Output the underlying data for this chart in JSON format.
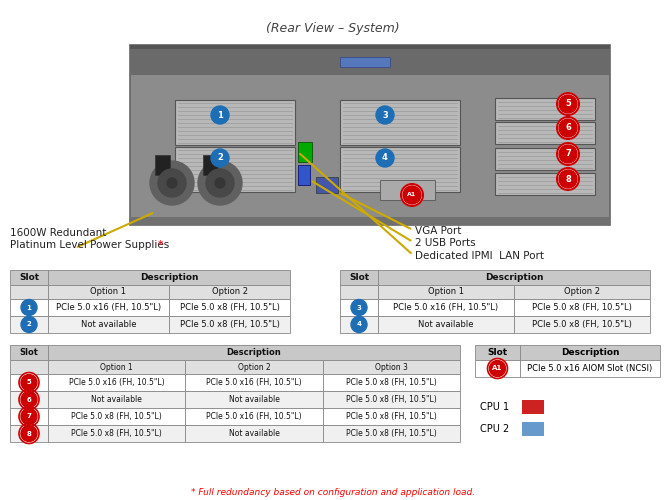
{
  "title": "(Rear View – System)",
  "bg_color": "#ffffff",
  "annotation_left_line1": "1600W Redundant",
  "annotation_left_line2": "Platinum Level Power Supplies",
  "annotation_left_asterisk": "*",
  "annotations_right": [
    "VGA Port",
    "2 USB Ports",
    "Dedicated IPMI  LAN Port"
  ],
  "footnote": "* Full redundancy based on configuration and application load.",
  "table1_rows": [
    {
      "slot": "1",
      "color": "#1e6eb5",
      "opt1": "PCIe 5.0 x16 (FH, 10.5\"L)",
      "opt2": "PCIe 5.0 x8 (FH, 10.5\"L)"
    },
    {
      "slot": "2",
      "color": "#1e6eb5",
      "opt1": "Not available",
      "opt2": "PCIe 5.0 x8 (FH, 10.5\"L)"
    }
  ],
  "table2_rows": [
    {
      "slot": "3",
      "color": "#1e6eb5",
      "opt1": "PCIe 5.0 x16 (FH, 10.5\"L)",
      "opt2": "PCIe 5.0 x8 (FH, 10.5\"L)"
    },
    {
      "slot": "4",
      "color": "#1e6eb5",
      "opt1": "Not available",
      "opt2": "PCIe 5.0 x8 (FH, 10.5\"L)"
    }
  ],
  "table3_rows": [
    {
      "slot": "5",
      "color": "#cc0000",
      "opt1": "PCIe 5.0 x16 (FH, 10.5\"L)",
      "opt2": "PCIe 5.0 x16 (FH, 10.5\"L)",
      "opt3": "PCIe 5.0 x8 (FH, 10.5\"L)"
    },
    {
      "slot": "6",
      "color": "#cc0000",
      "opt1": "Not available",
      "opt2": "Not available",
      "opt3": "PCIe 5.0 x8 (FH, 10.5\"L)"
    },
    {
      "slot": "7",
      "color": "#cc0000",
      "opt1": "PCIe 5.0 x8 (FH, 10.5\"L)",
      "opt2": "PCIe 5.0 x16 (FH, 10.5\"L)",
      "opt3": "PCIe 5.0 x8 (FH, 10.5\"L)"
    },
    {
      "slot": "8",
      "color": "#cc0000",
      "opt1": "PCIe 5.0 x8 (FH, 10.5\"L)",
      "opt2": "Not available",
      "opt3": "PCIe 5.0 x8 (FH, 10.5\"L)"
    }
  ],
  "table4_row": {
    "slot": "A1",
    "color": "#cc0000",
    "desc": "PCIe 5.0 x16 AIOM Slot (NCSI)"
  },
  "cpu_legend": [
    {
      "label": "CPU 1",
      "color": "#cc2222"
    },
    {
      "label": "CPU 2",
      "color": "#6699cc"
    }
  ],
  "header_bg": "#c8c8c8",
  "subheader_bg": "#e8e8e8",
  "row_bg_odd": "#ffffff",
  "row_bg_even": "#f0f0f0",
  "border_color": "#888888",
  "slot_circle_blue": "#1e6eb5",
  "slot_circle_red": "#cc0000"
}
